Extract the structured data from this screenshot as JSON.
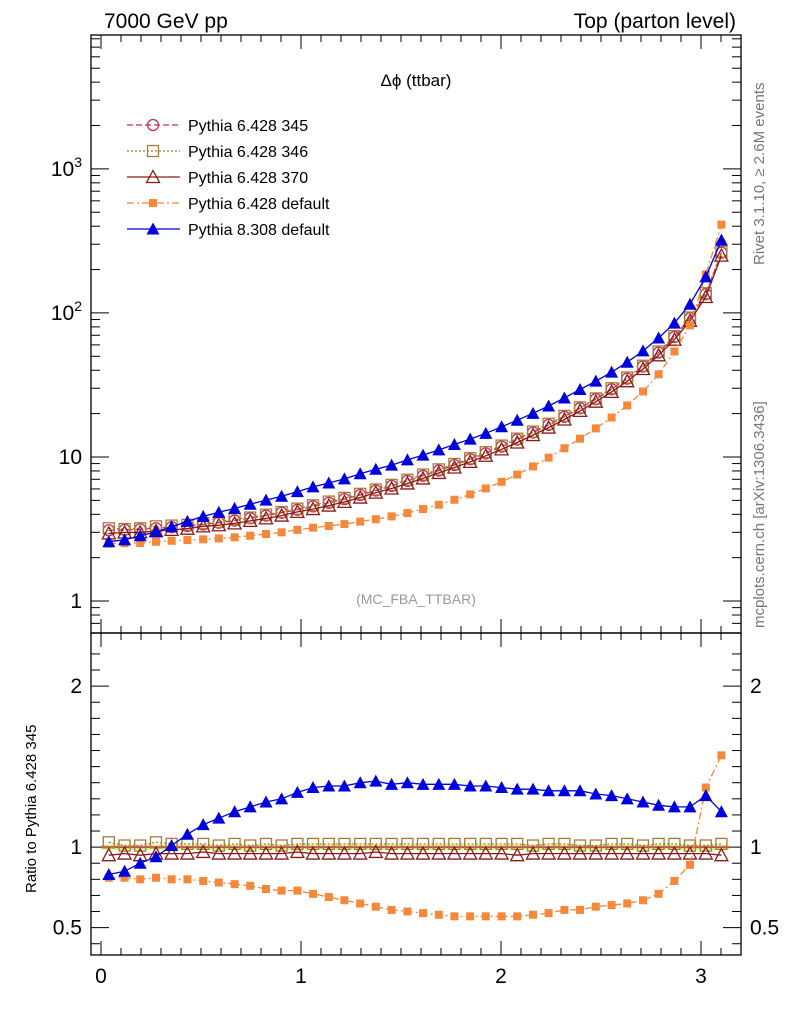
{
  "header": {
    "left": "7000 GeV pp",
    "right": "Top (parton level)"
  },
  "side_text": {
    "rivet": "Rivet 3.1.10, ≥ 2.6M events",
    "mcplots": "mcplots.cern.ch [arXiv:1306.3436]"
  },
  "plot_title": "Δϕ (ttbar)",
  "analysis_id": "(MC_FBA_TTBAR)",
  "ratio_ylabel": "Ratio to Pythia 6.428 345",
  "colors": {
    "p345": "#c0305a",
    "p346": "#a87a3a",
    "p370": "#8b1a1a",
    "p6def": "#f5883a",
    "p8def": "#0000dd",
    "band": "#ccee66"
  },
  "chart_data": [
    {
      "type": "line",
      "panel": "main",
      "yscale": "log",
      "xlim": [
        -0.05,
        3.2
      ],
      "ylim": [
        0.6,
        8500
      ],
      "x_ticks": [
        "0",
        "1",
        "2",
        "3"
      ],
      "y_ticks": [
        "1",
        "10",
        "10^2",
        "10^3"
      ],
      "legend_position": "top-left",
      "x": [
        0.039,
        0.118,
        0.196,
        0.275,
        0.353,
        0.432,
        0.511,
        0.589,
        0.668,
        0.746,
        0.825,
        0.903,
        0.982,
        1.06,
        1.139,
        1.217,
        1.296,
        1.374,
        1.453,
        1.532,
        1.61,
        1.689,
        1.767,
        1.846,
        1.924,
        2.003,
        2.081,
        2.16,
        2.238,
        2.317,
        2.395,
        2.474,
        2.553,
        2.631,
        2.71,
        2.788,
        2.867,
        2.945,
        3.024,
        3.102
      ],
      "series": [
        {
          "name": "Pythia 6.428 345",
          "key": "p345",
          "marker": "circle-open",
          "dash": "dashed",
          "values": [
            3.1,
            3.12,
            3.15,
            3.2,
            3.26,
            3.32,
            3.4,
            3.5,
            3.62,
            3.76,
            3.92,
            4.1,
            4.3,
            4.54,
            4.8,
            5.1,
            5.45,
            5.85,
            6.3,
            6.82,
            7.4,
            8.05,
            8.8,
            9.65,
            10.6,
            11.8,
            13.2,
            14.8,
            16.7,
            19.0,
            21.8,
            25.2,
            29.5,
            35.0,
            42.5,
            53.0,
            68.0,
            92.0,
            135.0,
            262.0
          ]
        },
        {
          "name": "Pythia 6.428 346",
          "key": "p346",
          "marker": "square-open",
          "dash": "dotted",
          "values": [
            3.2,
            3.16,
            3.2,
            3.3,
            3.34,
            3.38,
            3.47,
            3.55,
            3.7,
            3.8,
            3.98,
            4.15,
            4.38,
            4.62,
            4.9,
            5.2,
            5.55,
            5.95,
            6.4,
            6.95,
            7.55,
            8.2,
            8.95,
            9.8,
            10.8,
            12.0,
            13.4,
            15.0,
            17.0,
            19.3,
            22.1,
            25.5,
            30.0,
            35.6,
            43.0,
            54.0,
            69.0,
            93.0,
            137.0,
            266.0
          ]
        },
        {
          "name": "Pythia 6.428 370",
          "key": "p370",
          "marker": "triangle-open",
          "dash": "solid",
          "values": [
            2.95,
            2.99,
            3.0,
            3.06,
            3.12,
            3.18,
            3.3,
            3.36,
            3.46,
            3.6,
            3.75,
            3.92,
            4.16,
            4.35,
            4.6,
            4.88,
            5.23,
            5.66,
            6.04,
            6.55,
            7.1,
            7.75,
            8.45,
            9.25,
            10.2,
            11.3,
            12.6,
            14.2,
            16.0,
            18.2,
            20.9,
            24.2,
            28.3,
            33.6,
            40.8,
            50.8,
            65.2,
            88.2,
            129.0,
            250.0
          ]
        },
        {
          "name": "Pythia 6.428 default",
          "key": "p6def",
          "marker": "square-filled",
          "dash": "dashdot",
          "values": [
            2.5,
            2.52,
            2.53,
            2.58,
            2.62,
            2.65,
            2.68,
            2.72,
            2.77,
            2.84,
            2.92,
            3.0,
            3.12,
            3.23,
            3.32,
            3.42,
            3.56,
            3.7,
            3.87,
            4.08,
            4.35,
            4.66,
            5.05,
            5.5,
            6.05,
            6.73,
            7.55,
            8.6,
            9.9,
            11.5,
            13.4,
            15.8,
            18.8,
            22.8,
            28.5,
            37.5,
            54.0,
            82.0,
            185.0,
            410.0
          ]
        },
        {
          "name": "Pythia 8.308 default",
          "key": "p8def",
          "marker": "triangle-filled",
          "dash": "solid",
          "values": [
            2.58,
            2.66,
            2.84,
            3.02,
            3.28,
            3.57,
            3.87,
            4.13,
            4.4,
            4.7,
            5.02,
            5.34,
            5.75,
            6.2,
            6.6,
            7.05,
            7.65,
            8.22,
            8.78,
            9.55,
            10.3,
            11.2,
            12.2,
            13.3,
            14.6,
            16.2,
            18.0,
            20.1,
            22.6,
            25.7,
            29.4,
            33.6,
            38.8,
            45.5,
            54.5,
            67.0,
            85.0,
            115.0,
            178.0,
            320.0
          ]
        }
      ]
    },
    {
      "type": "line",
      "panel": "ratio",
      "ylabel": "Ratio to Pythia 6.428 345",
      "xlim": [
        -0.05,
        3.2
      ],
      "ylim": [
        0.33,
        2.33
      ],
      "x_ticks": [
        "0",
        "1",
        "2",
        "3"
      ],
      "y_ticks": [
        "0.5",
        "1",
        "2"
      ],
      "band": [
        0.985,
        1.015
      ],
      "x": [
        0.039,
        0.118,
        0.196,
        0.275,
        0.353,
        0.432,
        0.511,
        0.589,
        0.668,
        0.746,
        0.825,
        0.903,
        0.982,
        1.06,
        1.139,
        1.217,
        1.296,
        1.374,
        1.453,
        1.532,
        1.61,
        1.689,
        1.767,
        1.846,
        1.924,
        2.003,
        2.081,
        2.16,
        2.238,
        2.317,
        2.395,
        2.474,
        2.553,
        2.631,
        2.71,
        2.788,
        2.867,
        2.945,
        3.024,
        3.102
      ],
      "series": [
        {
          "name": "Pythia 6.428 346",
          "key": "p346",
          "marker": "square-open",
          "values": [
            1.03,
            1.01,
            1.01,
            1.03,
            1.02,
            1.02,
            1.02,
            1.01,
            1.02,
            1.01,
            1.02,
            1.01,
            1.02,
            1.02,
            1.02,
            1.02,
            1.02,
            1.02,
            1.02,
            1.02,
            1.02,
            1.02,
            1.02,
            1.02,
            1.02,
            1.02,
            1.02,
            1.01,
            1.02,
            1.02,
            1.01,
            1.01,
            1.02,
            1.02,
            1.01,
            1.02,
            1.02,
            1.01,
            1.01,
            1.02
          ]
        },
        {
          "name": "Pythia 6.428 370",
          "key": "p370",
          "marker": "triangle-open",
          "values": [
            0.95,
            0.96,
            0.95,
            0.96,
            0.96,
            0.96,
            0.97,
            0.96,
            0.96,
            0.96,
            0.96,
            0.96,
            0.97,
            0.96,
            0.96,
            0.96,
            0.96,
            0.97,
            0.96,
            0.96,
            0.96,
            0.96,
            0.96,
            0.96,
            0.96,
            0.96,
            0.95,
            0.96,
            0.96,
            0.96,
            0.96,
            0.96,
            0.96,
            0.96,
            0.96,
            0.96,
            0.96,
            0.96,
            0.96,
            0.95
          ]
        },
        {
          "name": "Pythia 6.428 default",
          "key": "p6def",
          "marker": "square-filled",
          "values": [
            0.81,
            0.81,
            0.8,
            0.81,
            0.8,
            0.8,
            0.79,
            0.78,
            0.77,
            0.76,
            0.74,
            0.73,
            0.73,
            0.71,
            0.69,
            0.67,
            0.65,
            0.63,
            0.61,
            0.6,
            0.59,
            0.58,
            0.57,
            0.57,
            0.57,
            0.57,
            0.57,
            0.58,
            0.59,
            0.61,
            0.61,
            0.63,
            0.64,
            0.65,
            0.67,
            0.71,
            0.79,
            0.89,
            1.37,
            1.57
          ]
        },
        {
          "name": "Pythia 8.308 default",
          "key": "p8def",
          "marker": "triangle-filled",
          "values": [
            0.83,
            0.85,
            0.9,
            0.94,
            1.01,
            1.08,
            1.14,
            1.18,
            1.22,
            1.25,
            1.28,
            1.3,
            1.34,
            1.37,
            1.38,
            1.38,
            1.4,
            1.41,
            1.39,
            1.4,
            1.39,
            1.39,
            1.39,
            1.38,
            1.38,
            1.37,
            1.36,
            1.36,
            1.35,
            1.35,
            1.35,
            1.33,
            1.32,
            1.3,
            1.28,
            1.26,
            1.25,
            1.25,
            1.32,
            1.22
          ]
        }
      ]
    }
  ]
}
